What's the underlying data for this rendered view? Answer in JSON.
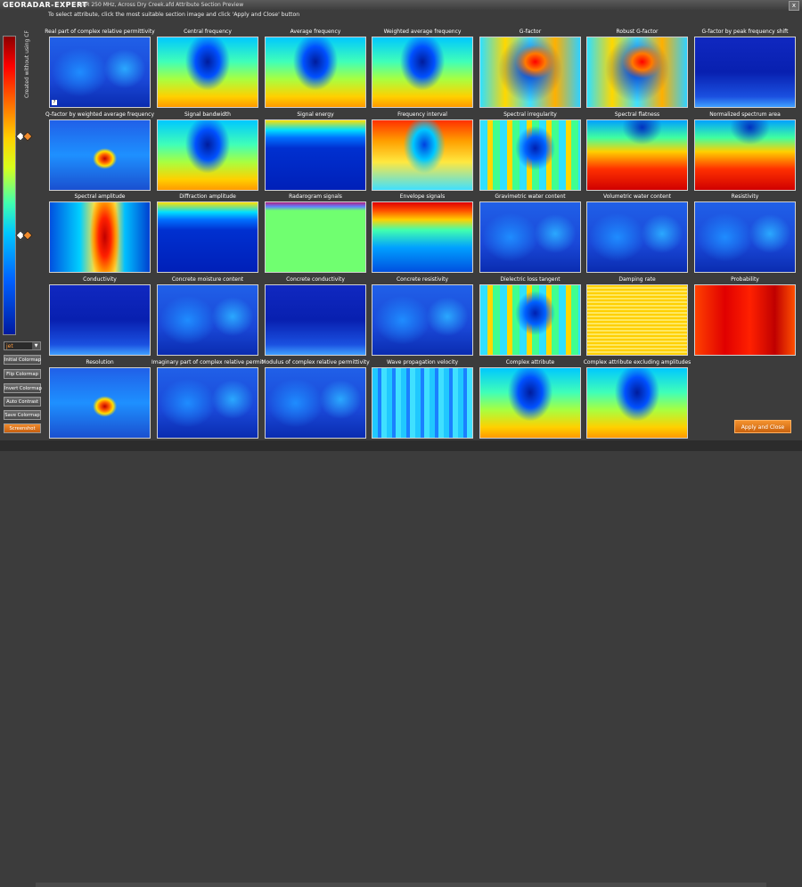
{
  "window": {
    "logo": "GEORADAR-EXPERT",
    "title": "GPR 250 MHz, Across Dry Creek.afd    Attribute Section Preview",
    "close_label": "x"
  },
  "instruction": "To select attribute, click the most suitable section image and click 'Apply and Close' button",
  "vertical_label": "Created without using CF",
  "colormap": {
    "selected": "jet",
    "dropdown_icon": "chevron-down-icon",
    "marker_colors": [
      "#ffffff",
      "#f08a2c"
    ]
  },
  "buttons": {
    "initial": "Initial Colormap",
    "flip": "Flip Colormap",
    "invert": "Invert Colormap",
    "auto_contrast": "Auto Contrast",
    "save": "Save Colormap",
    "screenshot": "Screenshot",
    "apply": "Apply and Close"
  },
  "tile_marker": "?",
  "attributes": [
    {
      "label": "Real part of complex relative permittivity",
      "style": "lowblue"
    },
    {
      "label": "Central frequency",
      "style": "cyanbowl"
    },
    {
      "label": "Average frequency",
      "style": "cyanbowl"
    },
    {
      "label": "Weighted average frequency",
      "style": "cyanbowl"
    },
    {
      "label": "G-factor",
      "style": "redcenter"
    },
    {
      "label": "Robust G-factor",
      "style": "redcenter"
    },
    {
      "label": "G-factor by peak frequency shift",
      "style": "deepblue"
    },
    {
      "label": "Q-factor by weighted average frequency",
      "style": "hotspot"
    },
    {
      "label": "Signal bandwidth",
      "style": "cyanbowl"
    },
    {
      "label": "Signal energy",
      "style": "topband"
    },
    {
      "label": "Frequency interval",
      "style": "warmbowl"
    },
    {
      "label": "Spectral irregularity",
      "style": "mixed"
    },
    {
      "label": "Spectral flatness",
      "style": "redbottom"
    },
    {
      "label": "Normalized spectrum area",
      "style": "redbottom"
    },
    {
      "label": "Spectral amplitude",
      "style": "redcol"
    },
    {
      "label": "Diffraction amplitude",
      "style": "topband"
    },
    {
      "label": "Radarogram signals",
      "style": "green"
    },
    {
      "label": "Envelope signals",
      "style": "redtop"
    },
    {
      "label": "Gravimetric water content",
      "style": "lowblue"
    },
    {
      "label": "Volumetric water content",
      "style": "lowblue"
    },
    {
      "label": "Resistivity",
      "style": "lowblue"
    },
    {
      "label": "Conductivity",
      "style": "deepblue"
    },
    {
      "label": "Concrete moisture content",
      "style": "lowblue"
    },
    {
      "label": "Concrete conductivity",
      "style": "deepblue"
    },
    {
      "label": "Concrete resistivity",
      "style": "lowblue"
    },
    {
      "label": "Dielectric loss tangent",
      "style": "mixed"
    },
    {
      "label": "Damping rate",
      "style": "yellowband"
    },
    {
      "label": "Probability",
      "style": "redall"
    },
    {
      "label": "Resolution",
      "style": "hotspot"
    },
    {
      "label": "Imaginary part of complex relative permittivity",
      "style": "lowblue"
    },
    {
      "label": "Modulus of complex relative permittivity",
      "style": "lowblue"
    },
    {
      "label": "Wave propagation velocity",
      "style": "cyanmix"
    },
    {
      "label": "Complex attribute",
      "style": "cyanbowl"
    },
    {
      "label": "Complex attribute excluding amplitudes",
      "style": "cyanbowl"
    }
  ]
}
